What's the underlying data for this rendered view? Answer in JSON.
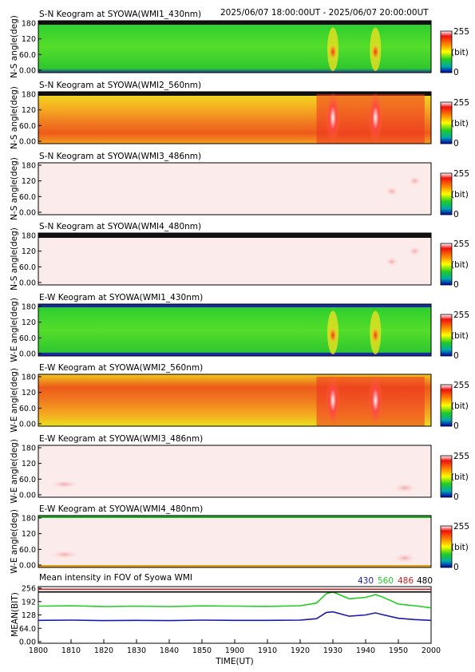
{
  "header": {
    "time_range": "2025/06/07 18:00:00UT - 2025/06/07 20:00:00UT"
  },
  "colorbar": {
    "max_label": "255",
    "unit_label": "(bit)",
    "min_label": "0"
  },
  "panels": [
    {
      "title": "S-N Keogram at SYOWA(WMI1_430nm)",
      "ylabel": "N-S angle(deg)",
      "yticks": [
        "180",
        "120",
        "60.0",
        "0.00"
      ]
    },
    {
      "title": "S-N Keogram at SYOWA(WMI2_560nm)",
      "ylabel": "N-S angle(deg)",
      "yticks": [
        "180",
        "120",
        "60.0",
        "0.00"
      ]
    },
    {
      "title": "S-N Keogram at SYOWA(WMI3_486nm)",
      "ylabel": "N-S angle(deg)",
      "yticks": [
        "180",
        "120",
        "60.0",
        "0.00"
      ]
    },
    {
      "title": "S-N Keogram at SYOWA(WMI4_480nm)",
      "ylabel": "N-S angle(deg)",
      "yticks": [
        "180",
        "120",
        "60.0",
        "0.00"
      ]
    },
    {
      "title": "E-W Keogram at SYOWA(WMI1_430nm)",
      "ylabel": "W-E angle(deg)",
      "yticks": [
        "180",
        "120",
        "60.0",
        "0.00"
      ]
    },
    {
      "title": "E-W Keogram at SYOWA(WMI2_560nm)",
      "ylabel": "W-E angle(deg)",
      "yticks": [
        "180",
        "120",
        "60.0",
        "0.00"
      ]
    },
    {
      "title": "E-W Keogram at SYOWA(WMI3_486nm)",
      "ylabel": "W-E angle(deg)",
      "yticks": [
        "180",
        "120",
        "60.0",
        "0.00"
      ]
    },
    {
      "title": "E-W Keogram at SYOWA(WMI4_480nm)",
      "ylabel": "W-E angle(deg)",
      "yticks": [
        "180",
        "120",
        "60.0",
        "0.00"
      ]
    }
  ],
  "mean_panel": {
    "title": "Mean intensity in FOV of Syowa WMI",
    "ylabel": "MEAN(BIT)",
    "yticks": [
      "256",
      "192",
      "128",
      "64.0",
      "0.00"
    ],
    "legend": [
      {
        "label": "430",
        "color": "#1a1aa6"
      },
      {
        "label": "560",
        "color": "#22cc22"
      },
      {
        "label": "486",
        "color": "#cc2222"
      },
      {
        "label": "480",
        "color": "#000000"
      }
    ]
  },
  "xaxis": {
    "label": "TIME(UT)",
    "ticks": [
      "1800",
      "1810",
      "1820",
      "1830",
      "1840",
      "1850",
      "1900",
      "1910",
      "1920",
      "1930",
      "1940",
      "1950",
      "2000"
    ]
  },
  "chart_data": {
    "type": "line",
    "title": "Mean intensity in FOV of Syowa WMI",
    "xlabel": "TIME(UT)",
    "ylabel": "MEAN(BIT)",
    "x": [
      0,
      10,
      20,
      30,
      40,
      50,
      60,
      70,
      80,
      85,
      88,
      90,
      95,
      100,
      103,
      105,
      110,
      115,
      120
    ],
    "x_tick_labels": [
      "1800",
      "1810",
      "1820",
      "1830",
      "1840",
      "1850",
      "1900",
      "1910",
      "1920",
      "1930",
      "1940",
      "1950",
      "2000"
    ],
    "ylim": [
      0,
      256
    ],
    "series": [
      {
        "name": "430",
        "color": "#1a1aa6",
        "values": [
          102,
          103,
          101,
          102,
          101,
          103,
          102,
          102,
          103,
          110,
          140,
          143,
          122,
          128,
          138,
          130,
          112,
          106,
          102
        ]
      },
      {
        "name": "560",
        "color": "#22cc22",
        "values": [
          170,
          172,
          168,
          170,
          168,
          171,
          170,
          169,
          172,
          185,
          230,
          238,
          205,
          212,
          225,
          215,
          180,
          172,
          162
        ]
      },
      {
        "name": "486",
        "color": "#cc2222",
        "values": [
          251,
          251,
          251,
          251,
          251,
          251,
          251,
          251,
          251,
          251,
          251,
          251,
          251,
          251,
          251,
          251,
          251,
          251,
          251
        ]
      },
      {
        "name": "480",
        "color": "#000000",
        "values": [
          238,
          238,
          238,
          238,
          238,
          238,
          238,
          238,
          238,
          238,
          238,
          238,
          238,
          238,
          238,
          238,
          238,
          238,
          238
        ]
      }
    ]
  }
}
